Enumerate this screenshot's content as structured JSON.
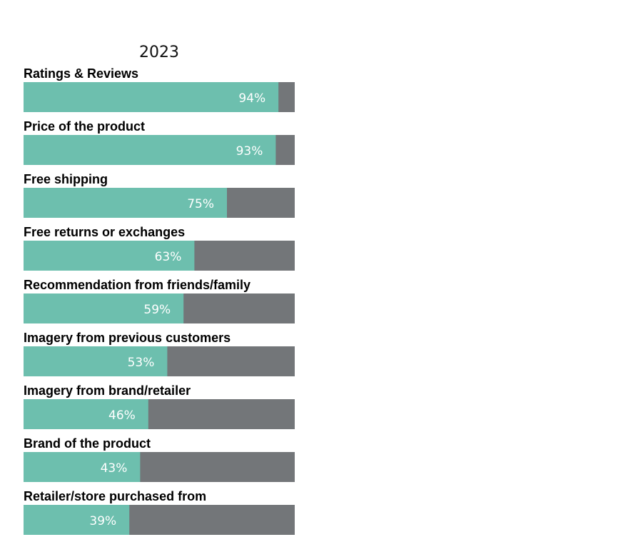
{
  "chart_data": {
    "type": "bar",
    "orientation": "horizontal",
    "stacked_to_total": true,
    "title": "2023",
    "xlim": [
      0,
      100
    ],
    "categories": [
      "Ratings & Reviews",
      "Price of the product",
      "Free shipping",
      "Free returns or exchanges",
      "Recommendation from friends/family",
      "Imagery from previous customers",
      "Imagery from brand/retailer",
      "Brand of the product",
      "Retailer/store purchased from"
    ],
    "values": [
      94,
      93,
      75,
      63,
      59,
      53,
      46,
      43,
      39
    ],
    "value_labels": [
      "94%",
      "93%",
      "75%",
      "63%",
      "59%",
      "53%",
      "46%",
      "43%",
      "39%"
    ],
    "colors": {
      "value": "#6dbfae",
      "remainder": "#737679",
      "value_label": "#ffffff",
      "category_label": "#000000",
      "title": "#111111"
    },
    "legend": "none",
    "grid": false
  }
}
